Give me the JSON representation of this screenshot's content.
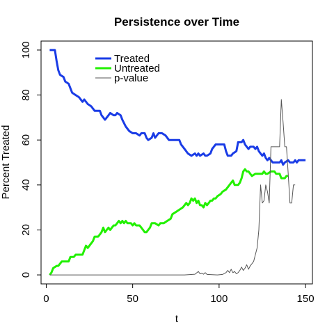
{
  "chart_data": {
    "type": "line",
    "title": "Persistence over Time",
    "xlabel": "t",
    "ylabel": "Percent Treated",
    "xlim": [
      -3,
      154
    ],
    "ylim": [
      -4,
      104
    ],
    "xticks": [
      0,
      50,
      100,
      150
    ],
    "yticks": [
      0,
      20,
      40,
      60,
      80,
      100
    ],
    "grid": false,
    "legend_position": "top-left",
    "series": [
      {
        "name": "Treated",
        "color": "#1a3ce6",
        "line_width": 3,
        "points": [
          [
            2,
            100
          ],
          [
            5,
            100
          ],
          [
            6,
            95
          ],
          [
            7,
            91
          ],
          [
            8,
            89
          ],
          [
            10,
            88
          ],
          [
            11,
            86
          ],
          [
            13,
            85
          ],
          [
            14,
            83
          ],
          [
            15,
            81
          ],
          [
            17,
            80
          ],
          [
            19,
            79
          ],
          [
            21,
            77
          ],
          [
            22,
            78
          ],
          [
            24,
            76
          ],
          [
            26,
            75
          ],
          [
            28,
            73
          ],
          [
            31,
            73
          ],
          [
            32,
            71
          ],
          [
            34,
            69
          ],
          [
            35,
            70
          ],
          [
            37,
            72
          ],
          [
            39,
            71
          ],
          [
            40,
            71
          ],
          [
            41,
            72
          ],
          [
            43,
            71
          ],
          [
            44,
            69
          ],
          [
            46,
            66
          ],
          [
            48,
            64
          ],
          [
            50,
            63
          ],
          [
            52,
            63
          ],
          [
            54,
            62
          ],
          [
            55,
            63
          ],
          [
            57,
            63
          ],
          [
            58,
            61
          ],
          [
            59,
            60
          ],
          [
            61,
            61
          ],
          [
            62,
            63
          ],
          [
            63,
            61
          ],
          [
            65,
            63
          ],
          [
            67,
            63
          ],
          [
            69,
            62
          ],
          [
            71,
            60
          ],
          [
            73,
            60
          ],
          [
            75,
            60
          ],
          [
            77,
            60
          ],
          [
            78,
            58
          ],
          [
            80,
            56
          ],
          [
            82,
            54
          ],
          [
            84,
            53
          ],
          [
            86,
            54
          ],
          [
            87,
            53
          ],
          [
            88,
            54
          ],
          [
            89,
            53
          ],
          [
            91,
            54
          ],
          [
            92,
            53
          ],
          [
            93,
            53
          ],
          [
            95,
            54
          ],
          [
            96,
            56
          ],
          [
            98,
            58
          ],
          [
            100,
            58
          ],
          [
            102,
            58
          ],
          [
            103,
            58
          ],
          [
            104,
            55
          ],
          [
            105,
            53
          ],
          [
            107,
            53
          ],
          [
            108,
            54
          ],
          [
            110,
            55
          ],
          [
            111,
            59
          ],
          [
            113,
            59
          ],
          [
            114,
            60
          ],
          [
            115,
            58
          ],
          [
            116,
            57
          ],
          [
            117,
            56
          ],
          [
            118,
            57
          ],
          [
            120,
            57
          ],
          [
            121,
            56
          ],
          [
            122,
            57
          ],
          [
            123,
            55
          ],
          [
            124,
            54
          ],
          [
            125,
            53
          ],
          [
            126,
            54
          ],
          [
            127,
            52
          ],
          [
            128,
            51
          ],
          [
            129,
            52
          ],
          [
            130,
            51
          ],
          [
            131,
            50
          ],
          [
            133,
            50
          ],
          [
            135,
            50
          ],
          [
            136,
            51
          ],
          [
            137,
            49
          ],
          [
            138,
            50
          ],
          [
            140,
            51
          ],
          [
            141,
            50
          ],
          [
            143,
            50
          ],
          [
            144,
            51
          ],
          [
            145,
            50
          ],
          [
            146,
            51
          ],
          [
            148,
            51
          ],
          [
            150,
            51
          ]
        ]
      },
      {
        "name": "Untreated",
        "color": "#22f000",
        "line_width": 3,
        "points": [
          [
            2,
            0
          ],
          [
            3,
            1
          ],
          [
            4,
            3
          ],
          [
            6,
            4
          ],
          [
            7,
            4
          ],
          [
            8,
            5
          ],
          [
            9,
            6
          ],
          [
            11,
            6
          ],
          [
            13,
            6
          ],
          [
            14,
            8
          ],
          [
            16,
            8
          ],
          [
            17,
            9
          ],
          [
            19,
            9
          ],
          [
            21,
            9
          ],
          [
            22,
            11
          ],
          [
            23,
            13
          ],
          [
            24,
            12
          ],
          [
            26,
            14
          ],
          [
            27,
            15
          ],
          [
            28,
            17
          ],
          [
            30,
            17
          ],
          [
            31,
            18
          ],
          [
            32,
            19
          ],
          [
            33,
            21
          ],
          [
            34,
            19
          ],
          [
            35,
            20
          ],
          [
            36,
            21
          ],
          [
            37,
            20
          ],
          [
            38,
            21
          ],
          [
            39,
            22
          ],
          [
            40,
            22
          ],
          [
            41,
            23
          ],
          [
            42,
            24
          ],
          [
            43,
            23
          ],
          [
            44,
            24
          ],
          [
            45,
            23
          ],
          [
            46,
            24
          ],
          [
            47,
            23
          ],
          [
            49,
            23
          ],
          [
            50,
            22
          ],
          [
            51,
            23
          ],
          [
            52,
            22
          ],
          [
            54,
            22
          ],
          [
            55,
            21
          ],
          [
            56,
            20
          ],
          [
            57,
            19
          ],
          [
            58,
            19
          ],
          [
            59,
            20
          ],
          [
            60,
            21
          ],
          [
            61,
            23
          ],
          [
            63,
            23
          ],
          [
            65,
            22
          ],
          [
            66,
            23
          ],
          [
            68,
            23
          ],
          [
            70,
            24
          ],
          [
            72,
            25
          ],
          [
            73,
            27
          ],
          [
            75,
            28
          ],
          [
            77,
            29
          ],
          [
            79,
            30
          ],
          [
            80,
            31
          ],
          [
            81,
            32
          ],
          [
            82,
            31
          ],
          [
            83,
            32
          ],
          [
            84,
            34
          ],
          [
            85,
            33
          ],
          [
            86,
            34
          ],
          [
            87,
            32
          ],
          [
            88,
            33
          ],
          [
            89,
            31
          ],
          [
            90,
            31
          ],
          [
            91,
            30
          ],
          [
            92,
            32
          ],
          [
            93,
            31
          ],
          [
            94,
            32
          ],
          [
            95,
            33
          ],
          [
            96,
            33
          ],
          [
            97,
            34
          ],
          [
            98,
            34
          ],
          [
            99,
            35
          ],
          [
            101,
            36
          ],
          [
            102,
            37
          ],
          [
            104,
            38
          ],
          [
            106,
            40
          ],
          [
            107,
            41
          ],
          [
            108,
            42
          ],
          [
            109,
            40
          ],
          [
            111,
            40
          ],
          [
            112,
            41
          ],
          [
            113,
            43
          ],
          [
            114,
            46
          ],
          [
            115,
            47
          ],
          [
            116,
            46
          ],
          [
            117,
            46
          ],
          [
            118,
            45
          ],
          [
            119,
            44
          ],
          [
            121,
            45
          ],
          [
            123,
            45
          ],
          [
            125,
            45
          ],
          [
            126,
            46
          ],
          [
            127,
            45
          ],
          [
            128,
            45
          ],
          [
            130,
            46
          ],
          [
            132,
            46
          ],
          [
            133,
            45
          ],
          [
            134,
            45
          ],
          [
            135,
            45
          ],
          [
            136,
            43
          ],
          [
            138,
            43
          ],
          [
            139,
            44
          ],
          [
            140,
            44
          ]
        ]
      },
      {
        "name": "p-value",
        "color": "#555555",
        "line_width": 1,
        "points": [
          [
            2,
            0
          ],
          [
            80,
            0
          ],
          [
            86,
            0.3
          ],
          [
            88,
            1.5
          ],
          [
            89,
            0.5
          ],
          [
            90,
            0.8
          ],
          [
            91,
            0.3
          ],
          [
            92,
            1
          ],
          [
            93,
            0.2
          ],
          [
            99,
            0
          ],
          [
            102,
            0.2
          ],
          [
            104,
            1
          ],
          [
            105,
            2
          ],
          [
            106,
            1
          ],
          [
            107,
            2.5
          ],
          [
            108,
            1
          ],
          [
            109,
            1.5
          ],
          [
            110,
            0.5
          ],
          [
            111,
            1
          ],
          [
            112,
            2
          ],
          [
            113,
            3.5
          ],
          [
            114,
            2
          ],
          [
            115,
            3
          ],
          [
            116,
            4.5
          ],
          [
            117,
            2.5
          ],
          [
            118,
            4
          ],
          [
            119,
            5
          ],
          [
            120,
            6
          ],
          [
            122,
            12
          ],
          [
            123,
            20
          ],
          [
            124,
            40
          ],
          [
            125,
            32
          ],
          [
            126,
            33
          ],
          [
            127,
            40
          ],
          [
            128,
            37
          ],
          [
            129,
            32
          ],
          [
            130,
            57
          ],
          [
            131,
            57
          ],
          [
            132,
            57
          ],
          [
            133,
            57
          ],
          [
            134,
            57
          ],
          [
            135,
            57
          ],
          [
            136,
            78
          ],
          [
            137,
            68
          ],
          [
            138,
            57
          ],
          [
            139,
            57
          ],
          [
            140,
            45
          ],
          [
            141,
            32
          ],
          [
            142,
            32
          ],
          [
            143,
            40
          ],
          [
            144,
            40
          ]
        ]
      }
    ]
  }
}
